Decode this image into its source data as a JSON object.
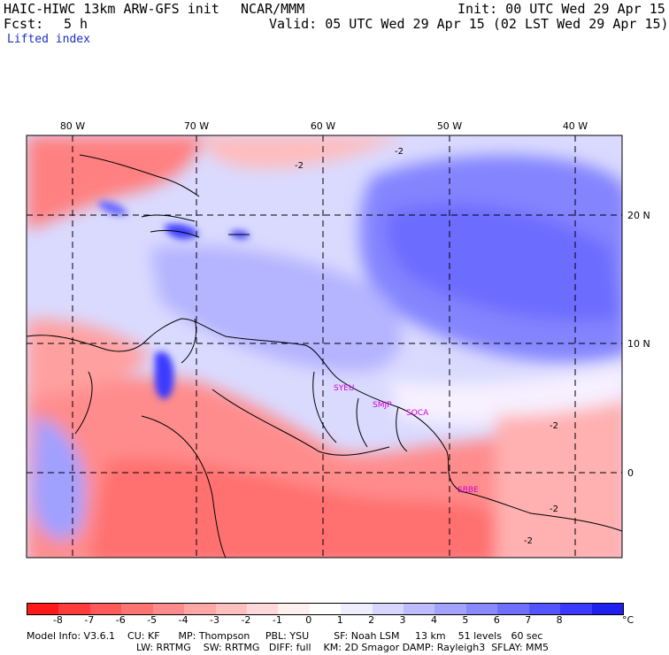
{
  "header": {
    "model_title": "HAIC-HIWC 13km ARW-GFS init",
    "org": "NCAR/MMM",
    "init_time": "Init: 00 UTC Wed 29 Apr 15",
    "forecast_label": "Fcst:",
    "forecast_hours": "5 h",
    "valid_time": "Valid: 05 UTC Wed 29 Apr 15 (02 LST Wed 29 Apr 15)",
    "field_name": "Lifted index"
  },
  "map": {
    "longitude_labels": [
      "80 W",
      "70 W",
      "60 W",
      "50 W",
      "40 W"
    ],
    "latitude_labels": [
      "20 N",
      "10 N",
      "0"
    ],
    "contour_label": "-2",
    "station_labels": [
      "SYEU",
      "SMJP",
      "SOCA",
      "SBBE"
    ],
    "station_color": "#d000d0"
  },
  "colorbar": {
    "ticks": [
      "-8",
      "-7",
      "-6",
      "-5",
      "-4",
      "-3",
      "-2",
      "-1",
      "0",
      "1",
      "2",
      "3",
      "4",
      "5",
      "6",
      "7",
      "8"
    ],
    "unit": "°C",
    "colors": [
      "#ff1a1a",
      "#ff3b3b",
      "#ff5959",
      "#ff7373",
      "#ff8c8c",
      "#ffa6a6",
      "#ffbfbf",
      "#ffd9d9",
      "#fff0f0",
      "#ffffff",
      "#eeeeff",
      "#d6d6ff",
      "#bcbcff",
      "#a2a2ff",
      "#8888ff",
      "#6e6eff",
      "#5454ff",
      "#3a3aff",
      "#2020ee"
    ]
  },
  "footer": {
    "line1": "Model Info: V3.6.1    CU: KF      MP: Thompson     PBL: YSU        SF: Noah LSM     13 km    51 levels   60 sec",
    "line2": "LW: RRTMG    SW: RRTMG   DIFF: full    KM: 2D Smagor DAMP: Rayleigh3  SFLAY: MM5"
  }
}
